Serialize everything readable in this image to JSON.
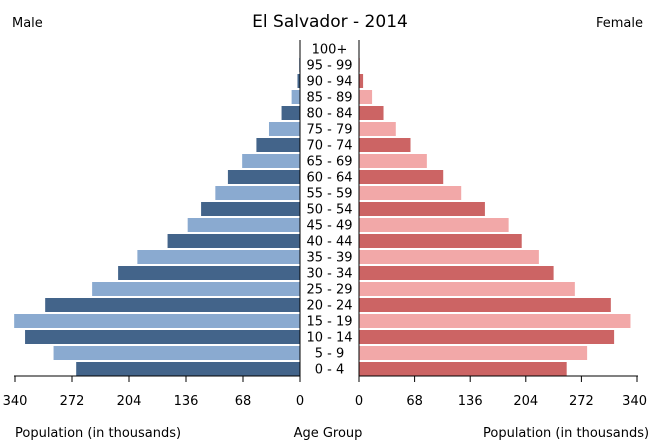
{
  "chart_data": {
    "type": "bar",
    "title": "El Salvador - 2014",
    "male_label": "Male",
    "female_label": "Female",
    "xlabel_left": "Population (in thousands)",
    "xlabel_center": "Age Group",
    "xlabel_right": "Population (in thousands)",
    "categories": [
      "100+",
      "95 - 99",
      "90 - 94",
      "85 - 89",
      "80 - 84",
      "75 - 79",
      "70 - 74",
      "65 - 69",
      "60 - 64",
      "55 - 59",
      "50 - 54",
      "45 - 49",
      "40 - 44",
      "35 - 39",
      "30 - 34",
      "25 - 29",
      "20 - 24",
      "15 - 19",
      "10 - 14",
      "5 - 9",
      "0 - 4"
    ],
    "series": [
      {
        "name": "Male",
        "values": [
          0,
          1,
          3,
          10,
          22,
          37,
          52,
          69,
          86,
          101,
          118,
          134,
          158,
          194,
          217,
          248,
          304,
          341,
          328,
          294,
          267
        ]
      },
      {
        "name": "Female",
        "values": [
          0,
          1,
          5,
          16,
          30,
          45,
          63,
          83,
          103,
          125,
          154,
          183,
          199,
          220,
          238,
          264,
          308,
          332,
          312,
          279,
          254
        ]
      }
    ],
    "xlim": [
      0,
      340
    ],
    "x_ticks_left": [
      "340",
      "272",
      "204",
      "136",
      "68",
      "0"
    ],
    "x_ticks_right": [
      "0",
      "68",
      "136",
      "204",
      "272",
      "340"
    ],
    "colors": {
      "male_dark": "#43648a",
      "male_light": "#8aaad0",
      "female_dark": "#cc6464",
      "female_light": "#f2a8a8"
    }
  }
}
